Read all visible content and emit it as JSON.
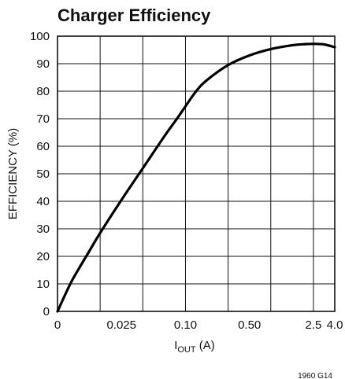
{
  "chart_data": {
    "type": "line",
    "title": "Charger Efficiency",
    "ylabel": "EFFICIENCY (%)",
    "xlabel": {
      "main": "I",
      "sub": "OUT",
      "suffix": " (A)"
    },
    "ylim": [
      0,
      100
    ],
    "y_ticks": [
      "0",
      "10",
      "20",
      "30",
      "40",
      "50",
      "60",
      "70",
      "80",
      "90",
      "100"
    ],
    "x_ticks": [
      {
        "label": "0",
        "pos": 0
      },
      {
        "label": "0.025",
        "pos": 1.5
      },
      {
        "label": "0.10",
        "pos": 3
      },
      {
        "label": "0.50",
        "pos": 4.5
      },
      {
        "label": "2.5",
        "pos": 6
      },
      {
        "label": "4.0",
        "pos": 6.5
      }
    ],
    "x_divisions": 6.5,
    "grid": true,
    "series": [
      {
        "x_pos": [
          0,
          0.3,
          0.5,
          0.75,
          1.0,
          1.5,
          2.0,
          2.5,
          2.8,
          3.0,
          3.25,
          3.5,
          4.0,
          4.5,
          5.0,
          5.5,
          5.8,
          6.0,
          6.25,
          6.5
        ],
        "values": [
          0,
          10,
          15.5,
          22,
          28.5,
          40.5,
          52,
          63.5,
          70,
          74.5,
          80,
          84,
          89.5,
          93,
          95.3,
          96.7,
          97.1,
          97.2,
          97,
          96
        ]
      }
    ],
    "footnote": "1960 G14"
  }
}
